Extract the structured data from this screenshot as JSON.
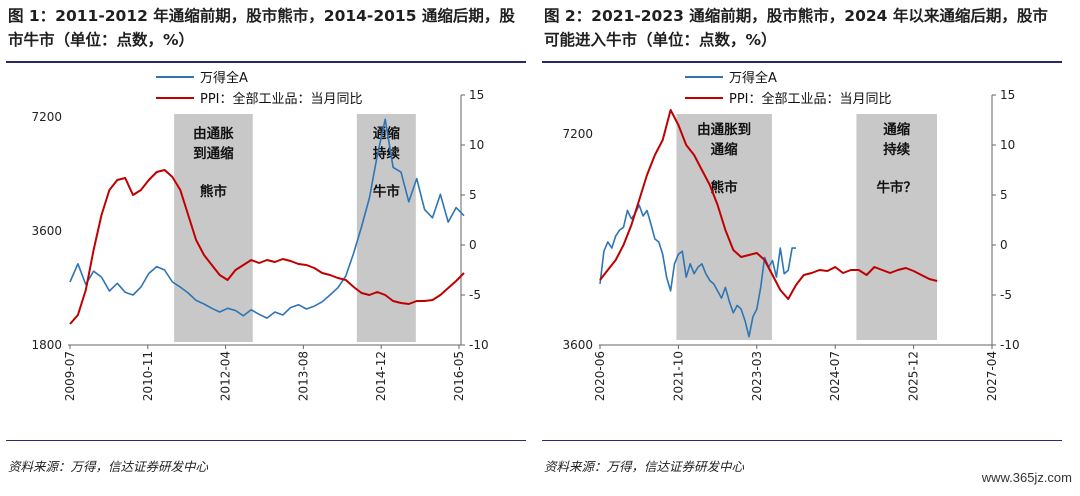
{
  "chart_data": [
    {
      "id": "left",
      "type": "line",
      "title": "图 1：2011-2012 年通缩前期，股市熊市，2014-2015 通缩后期，股市牛市（单位：点数，%）",
      "source": "资料来源：万得，信达证券研发中心",
      "x_ticks": [
        "2009-07",
        "2010-11",
        "2012-04",
        "2013-08",
        "2014-12",
        "2016-05"
      ],
      "y_left": {
        "ticks": [
          "1800",
          "3600",
          "7200"
        ],
        "log": true
      },
      "y_right": {
        "ticks": [
          "-10",
          "-5",
          "0",
          "5",
          "10",
          "15"
        ],
        "range": [
          -10,
          15
        ]
      },
      "series": [
        {
          "name": "万得全A",
          "color": "#2e75b6",
          "axis": "left",
          "points": [
            [
              0,
              2640
            ],
            [
              0.02,
              2950
            ],
            [
              0.04,
              2600
            ],
            [
              0.06,
              2820
            ],
            [
              0.08,
              2720
            ],
            [
              0.1,
              2500
            ],
            [
              0.12,
              2620
            ],
            [
              0.14,
              2480
            ],
            [
              0.16,
              2440
            ],
            [
              0.18,
              2560
            ],
            [
              0.2,
              2780
            ],
            [
              0.22,
              2900
            ],
            [
              0.24,
              2840
            ],
            [
              0.26,
              2640
            ],
            [
              0.28,
              2560
            ],
            [
              0.3,
              2470
            ],
            [
              0.32,
              2360
            ],
            [
              0.34,
              2310
            ],
            [
              0.36,
              2250
            ],
            [
              0.38,
              2200
            ],
            [
              0.4,
              2250
            ],
            [
              0.42,
              2220
            ],
            [
              0.44,
              2150
            ],
            [
              0.46,
              2230
            ],
            [
              0.48,
              2170
            ],
            [
              0.5,
              2120
            ],
            [
              0.52,
              2200
            ],
            [
              0.54,
              2160
            ],
            [
              0.56,
              2260
            ],
            [
              0.58,
              2300
            ],
            [
              0.6,
              2240
            ],
            [
              0.62,
              2280
            ],
            [
              0.64,
              2340
            ],
            [
              0.66,
              2440
            ],
            [
              0.68,
              2550
            ],
            [
              0.7,
              2740
            ],
            [
              0.72,
              3150
            ],
            [
              0.74,
              3700
            ],
            [
              0.76,
              4400
            ],
            [
              0.78,
              5700
            ],
            [
              0.8,
              7100
            ],
            [
              0.82,
              5300
            ],
            [
              0.84,
              5150
            ],
            [
              0.86,
              4300
            ],
            [
              0.88,
              4950
            ],
            [
              0.9,
              4100
            ],
            [
              0.92,
              3900
            ],
            [
              0.94,
              4500
            ],
            [
              0.96,
              3800
            ],
            [
              0.98,
              4150
            ],
            [
              1,
              3950
            ]
          ]
        },
        {
          "name": "PPI：全部工业品：当月同比",
          "color": "#c00000",
          "axis": "right",
          "points": [
            [
              0,
              -7.9
            ],
            [
              0.02,
              -7.0
            ],
            [
              0.04,
              -4.5
            ],
            [
              0.06,
              -0.5
            ],
            [
              0.08,
              3.0
            ],
            [
              0.1,
              5.5
            ],
            [
              0.12,
              6.5
            ],
            [
              0.14,
              6.7
            ],
            [
              0.16,
              5.0
            ],
            [
              0.18,
              5.5
            ],
            [
              0.2,
              6.5
            ],
            [
              0.22,
              7.3
            ],
            [
              0.24,
              7.5
            ],
            [
              0.26,
              6.8
            ],
            [
              0.28,
              5.5
            ],
            [
              0.3,
              3.0
            ],
            [
              0.32,
              0.5
            ],
            [
              0.34,
              -1.0
            ],
            [
              0.36,
              -2.0
            ],
            [
              0.38,
              -3.0
            ],
            [
              0.4,
              -3.5
            ],
            [
              0.42,
              -2.5
            ],
            [
              0.44,
              -2.0
            ],
            [
              0.46,
              -1.5
            ],
            [
              0.48,
              -1.8
            ],
            [
              0.5,
              -1.5
            ],
            [
              0.52,
              -1.7
            ],
            [
              0.54,
              -1.4
            ],
            [
              0.56,
              -1.6
            ],
            [
              0.58,
              -1.9
            ],
            [
              0.6,
              -2.0
            ],
            [
              0.62,
              -2.3
            ],
            [
              0.64,
              -2.8
            ],
            [
              0.66,
              -3.0
            ],
            [
              0.68,
              -3.3
            ],
            [
              0.7,
              -3.5
            ],
            [
              0.72,
              -4.2
            ],
            [
              0.74,
              -4.8
            ],
            [
              0.76,
              -5.0
            ],
            [
              0.78,
              -4.7
            ],
            [
              0.8,
              -5.0
            ],
            [
              0.82,
              -5.6
            ],
            [
              0.84,
              -5.8
            ],
            [
              0.86,
              -5.9
            ],
            [
              0.88,
              -5.6
            ],
            [
              0.9,
              -5.6
            ],
            [
              0.92,
              -5.5
            ],
            [
              0.94,
              -5.0
            ],
            [
              0.96,
              -4.3
            ],
            [
              0.98,
              -3.6
            ],
            [
              1,
              -2.8
            ]
          ]
        }
      ],
      "shaded_regions": [
        {
          "start": 0.27,
          "end": 0.47,
          "labels": [
            "由通胀",
            "到通缩",
            "熊市"
          ]
        },
        {
          "start": 0.735,
          "end": 0.885,
          "labels": [
            "通缩",
            "持续",
            "牛市"
          ]
        }
      ]
    },
    {
      "id": "right",
      "type": "line",
      "title": "图 2：2021-2023 通缩前期，股市熊市，2024 年以来通缩后期，股市可能进入牛市（单位：点数，%）",
      "source": "资料来源：万得，信达证券研发中心",
      "x_ticks": [
        "2020-06",
        "2021-10",
        "2023-03",
        "2024-07",
        "2025-12",
        "2027-04"
      ],
      "y_left": {
        "ticks": [
          "3600",
          "7200"
        ],
        "log": true
      },
      "y_right": {
        "ticks": [
          "-10",
          "-5",
          "0",
          "5",
          "10",
          "15"
        ],
        "range": [
          -10,
          15
        ]
      },
      "series": [
        {
          "name": "万得全A",
          "color": "#2e75b6",
          "axis": "left",
          "points": [
            [
              0,
              4400
            ],
            [
              0.01,
              4900
            ],
            [
              0.02,
              5050
            ],
            [
              0.03,
              4950
            ],
            [
              0.04,
              5150
            ],
            [
              0.05,
              5250
            ],
            [
              0.06,
              5300
            ],
            [
              0.07,
              5600
            ],
            [
              0.08,
              5450
            ],
            [
              0.09,
              5550
            ],
            [
              0.1,
              5700
            ],
            [
              0.11,
              5500
            ],
            [
              0.12,
              5600
            ],
            [
              0.13,
              5350
            ],
            [
              0.14,
              5100
            ],
            [
              0.15,
              5050
            ],
            [
              0.16,
              4850
            ],
            [
              0.17,
              4500
            ],
            [
              0.18,
              4300
            ],
            [
              0.19,
              4700
            ],
            [
              0.2,
              4850
            ],
            [
              0.21,
              4900
            ],
            [
              0.22,
              4500
            ],
            [
              0.23,
              4700
            ],
            [
              0.24,
              4550
            ],
            [
              0.25,
              4650
            ],
            [
              0.26,
              4700
            ],
            [
              0.27,
              4550
            ],
            [
              0.28,
              4450
            ],
            [
              0.29,
              4400
            ],
            [
              0.3,
              4300
            ],
            [
              0.31,
              4200
            ],
            [
              0.32,
              4350
            ],
            [
              0.33,
              4150
            ],
            [
              0.34,
              4000
            ],
            [
              0.35,
              4100
            ],
            [
              0.36,
              4050
            ],
            [
              0.37,
              3900
            ],
            [
              0.38,
              3700
            ],
            [
              0.39,
              3950
            ],
            [
              0.4,
              4050
            ],
            [
              0.41,
              4350
            ],
            [
              0.42,
              4800
            ],
            [
              0.43,
              4650
            ],
            [
              0.44,
              4750
            ],
            [
              0.45,
              4500
            ],
            [
              0.46,
              4950
            ],
            [
              0.47,
              4550
            ],
            [
              0.48,
              4600
            ],
            [
              0.49,
              4950
            ],
            [
              0.5,
              4950
            ]
          ]
        },
        {
          "name": "PPI：全部工业品：当月同比",
          "color": "#c00000",
          "axis": "right",
          "points": [
            [
              0,
              -3.5
            ],
            [
              0.02,
              -2.5
            ],
            [
              0.04,
              -1.5
            ],
            [
              0.06,
              0.0
            ],
            [
              0.08,
              2.0
            ],
            [
              0.1,
              4.5
            ],
            [
              0.12,
              7.0
            ],
            [
              0.14,
              9.0
            ],
            [
              0.16,
              10.5
            ],
            [
              0.18,
              13.5
            ],
            [
              0.2,
              12.0
            ],
            [
              0.22,
              10.0
            ],
            [
              0.24,
              9.0
            ],
            [
              0.26,
              7.5
            ],
            [
              0.28,
              6.0
            ],
            [
              0.3,
              4.0
            ],
            [
              0.32,
              1.5
            ],
            [
              0.34,
              -0.5
            ],
            [
              0.36,
              -1.2
            ],
            [
              0.38,
              -1.0
            ],
            [
              0.4,
              -0.8
            ],
            [
              0.42,
              -1.5
            ],
            [
              0.44,
              -3.0
            ],
            [
              0.46,
              -4.5
            ],
            [
              0.48,
              -5.4
            ],
            [
              0.5,
              -4.0
            ],
            [
              0.52,
              -3.0
            ],
            [
              0.54,
              -2.8
            ],
            [
              0.56,
              -2.5
            ],
            [
              0.58,
              -2.6
            ],
            [
              0.6,
              -2.2
            ],
            [
              0.62,
              -2.8
            ],
            [
              0.64,
              -2.5
            ],
            [
              0.66,
              -2.5
            ],
            [
              0.68,
              -3.0
            ],
            [
              0.7,
              -2.2
            ],
            [
              0.72,
              -2.5
            ],
            [
              0.74,
              -2.8
            ],
            [
              0.76,
              -2.5
            ],
            [
              0.78,
              -2.3
            ],
            [
              0.8,
              -2.6
            ],
            [
              0.82,
              -3.0
            ],
            [
              0.84,
              -3.4
            ],
            [
              0.86,
              -3.6
            ]
          ]
        }
      ],
      "shaded_regions": [
        {
          "start": 0.197,
          "end": 0.44,
          "labels": [
            "由通胀到",
            "通缩",
            "熊市"
          ]
        },
        {
          "start": 0.655,
          "end": 0.86,
          "labels": [
            "通缩",
            "持续",
            "牛市？"
          ]
        }
      ]
    }
  ],
  "watermark": "www.365jz.com"
}
